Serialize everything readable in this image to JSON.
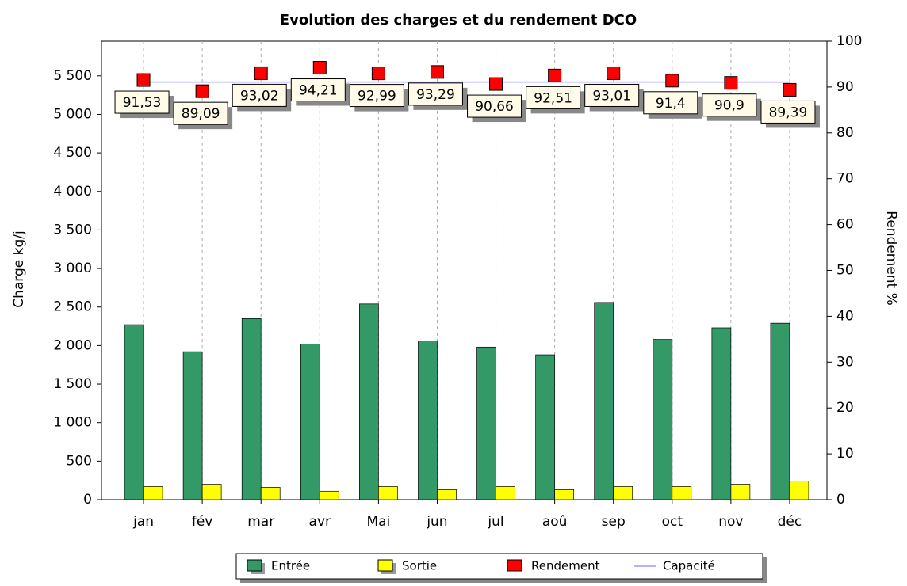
{
  "chart_data": {
    "type": "bar",
    "title": "Evolution des charges et du rendement DCO",
    "ylabel": "Charge kg/j",
    "y2label": "Rendement %",
    "categories": [
      "jan",
      "fév",
      "mar",
      "avr",
      "Mai",
      "jun",
      "jul",
      "aoû",
      "sep",
      "oct",
      "nov",
      "déc"
    ],
    "series": [
      {
        "name": "Entrée",
        "type": "bar",
        "color": "#339966",
        "values": [
          2270,
          1920,
          2350,
          2020,
          2540,
          2060,
          1980,
          1880,
          2560,
          2080,
          2230,
          2290
        ]
      },
      {
        "name": "Sortie",
        "type": "bar",
        "color": "#ffff00",
        "values": [
          170,
          200,
          160,
          110,
          170,
          130,
          170,
          130,
          170,
          170,
          200,
          240
        ]
      },
      {
        "name": "Rendement",
        "type": "scatter",
        "axis": "y2",
        "color": "#ff0000",
        "values": [
          91.53,
          89.09,
          93.02,
          94.21,
          92.99,
          93.29,
          90.66,
          92.51,
          93.01,
          91.4,
          90.9,
          89.39
        ],
        "value_labels": [
          "91,53",
          "89,09",
          "93,02",
          "94,21",
          "92,99",
          "93,29",
          "90,66",
          "92,51",
          "93,01",
          "91,4",
          "90,9",
          "89,39"
        ]
      },
      {
        "name": "Capacité",
        "type": "line",
        "color": "#9999ff",
        "values": [
          5420,
          5420,
          5420,
          5420,
          5420,
          5420,
          5420,
          5420,
          5420,
          5420,
          5420,
          5420
        ]
      }
    ],
    "ylim": [
      0,
      5950
    ],
    "yticks": [
      0,
      500,
      {
        "value": 1000,
        "label": "1 000"
      },
      {
        "value": 1500,
        "label": "1 500"
      },
      {
        "value": 2000,
        "label": "2 000"
      },
      {
        "value": 2500,
        "label": "2 500"
      },
      {
        "value": 3000,
        "label": "3 000"
      },
      {
        "value": 3500,
        "label": "3 500"
      },
      {
        "value": 4000,
        "label": "4 000"
      },
      {
        "value": 4500,
        "label": "4 500"
      },
      {
        "value": 5000,
        "label": "5 000"
      },
      {
        "value": 5500,
        "label": "5 500"
      }
    ],
    "y2lim": [
      0,
      100
    ],
    "y2ticks": [
      0,
      10,
      20,
      30,
      40,
      50,
      60,
      70,
      80,
      90,
      100
    ],
    "grid": true
  }
}
